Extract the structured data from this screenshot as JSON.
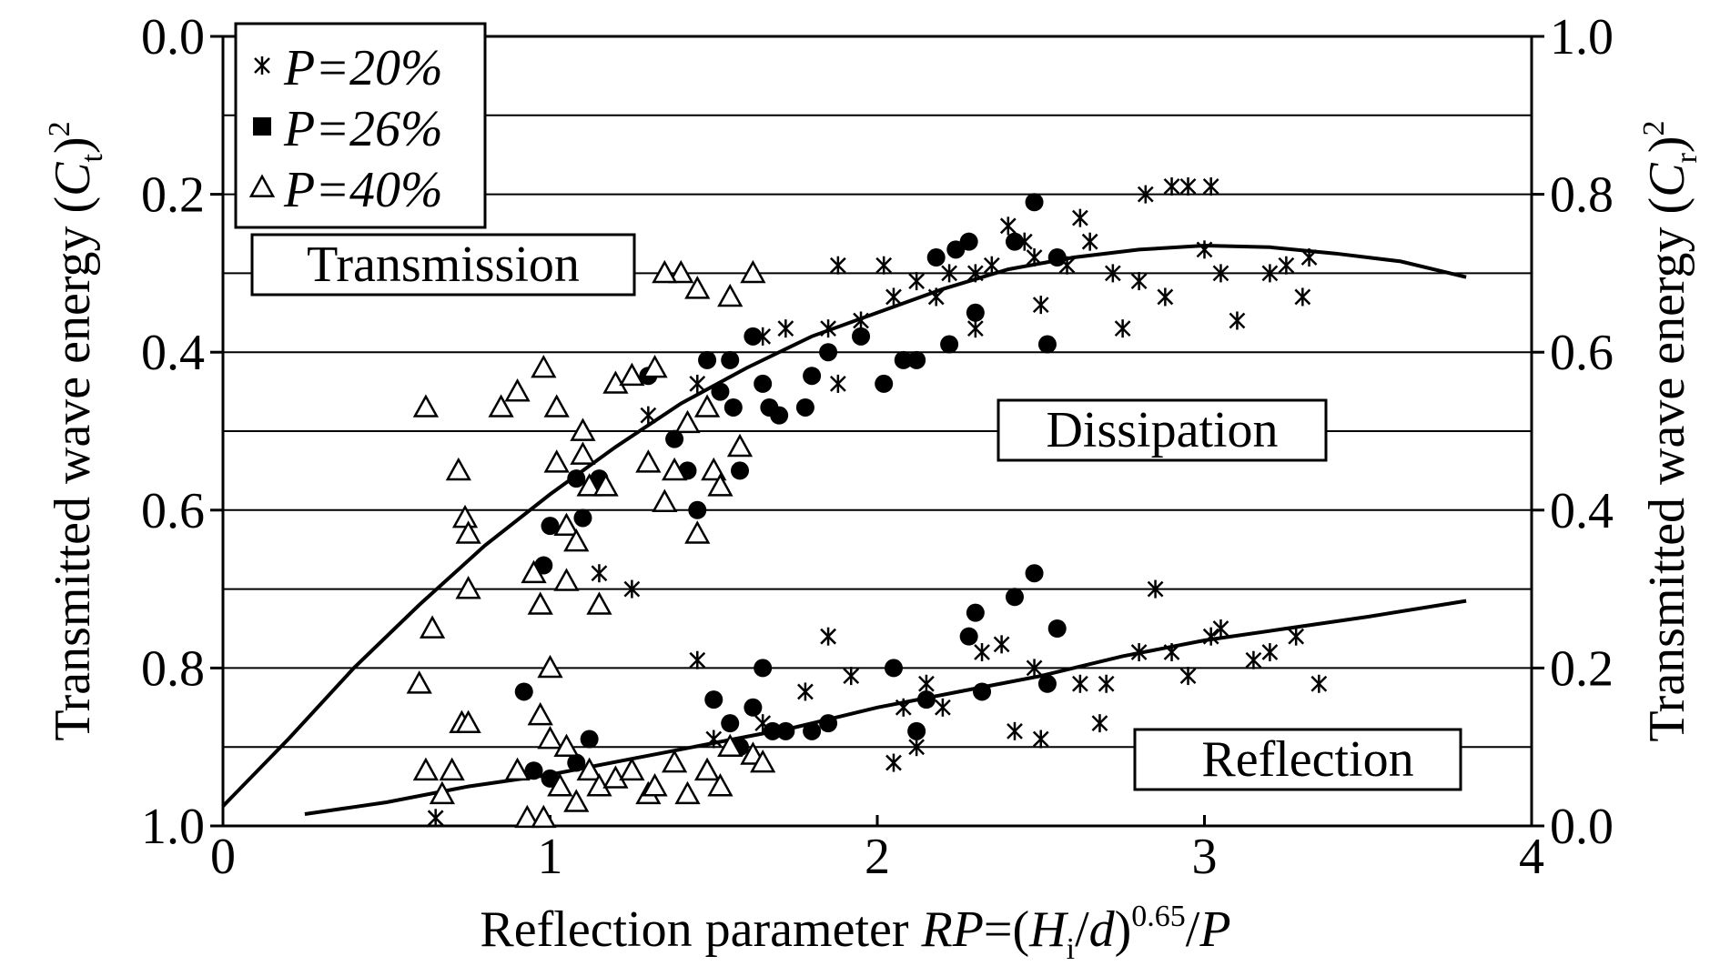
{
  "chart_data": {
    "type": "scatter",
    "title": "",
    "xlabel": "Reflection parameter RP=(Hi/d)^0.65/P",
    "xlabel_parts": {
      "main": "Reflection parameter ",
      "rp": "RP",
      "eq": "=(",
      "h": "H",
      "h_sub": "i",
      "slash": "/",
      "d": "d",
      "close": ")",
      "exp": "0.65",
      "tail": "/",
      "p": "P"
    },
    "ylabel_left": "Transmitted wave energy (Ct)^2",
    "ylabel_left_parts": {
      "main": "Transmitted wave energy (",
      "var": "C",
      "sub": "t",
      "close": ")",
      "sup": "2"
    },
    "ylabel_right": "Transmitted wave energy (Cr)^2",
    "ylabel_right_parts": {
      "main": "Transmitted wave energy (",
      "var": "C",
      "sub": "r",
      "close": ")",
      "sup": "2"
    },
    "xlim": [
      0,
      4
    ],
    "ylim_left": [
      0.0,
      1.0
    ],
    "ylim_left_inverted": true,
    "ylim_right": [
      0.0,
      1.0
    ],
    "x_ticks": [
      "0",
      "1",
      "2",
      "3",
      "4"
    ],
    "y_ticks_left": [
      "0.0",
      "0.2",
      "0.4",
      "0.6",
      "0.8",
      "1.0"
    ],
    "y_ticks_right": [
      "1.0",
      "0.8",
      "0.6",
      "0.4",
      "0.2",
      "0.0"
    ],
    "grid": "horizontal",
    "legend_position": "top-left",
    "legend": [
      {
        "marker": "asterisk",
        "label": "P=20%"
      },
      {
        "marker": "square",
        "label": "P=26%"
      },
      {
        "marker": "triangle",
        "label": "P=40%"
      }
    ],
    "annotations": [
      "Transmission",
      "Dissipation",
      "Reflection"
    ],
    "curves": [
      {
        "name": "transmission",
        "x": [
          0.0,
          0.2,
          0.4,
          0.6,
          0.8,
          1.0,
          1.2,
          1.4,
          1.6,
          1.8,
          2.0,
          2.2,
          2.4,
          2.6,
          2.8,
          3.0,
          3.2,
          3.4,
          3.6,
          3.8
        ],
        "y": [
          0.975,
          0.89,
          0.8,
          0.72,
          0.645,
          0.58,
          0.52,
          0.465,
          0.42,
          0.38,
          0.35,
          0.32,
          0.295,
          0.28,
          0.27,
          0.265,
          0.267,
          0.275,
          0.285,
          0.305
        ]
      },
      {
        "name": "reflection",
        "x": [
          0.25,
          0.5,
          0.75,
          1.0,
          1.25,
          1.5,
          1.75,
          2.0,
          2.25,
          2.5,
          2.75,
          3.0,
          3.25,
          3.5,
          3.8
        ],
        "y": [
          0.985,
          0.97,
          0.95,
          0.935,
          0.915,
          0.895,
          0.875,
          0.85,
          0.83,
          0.81,
          0.785,
          0.765,
          0.75,
          0.735,
          0.715
        ]
      }
    ],
    "series": [
      {
        "name": "P=20%",
        "marker": "asterisk",
        "points": [
          [
            0.65,
            0.99
          ],
          [
            1.3,
            0.48
          ],
          [
            1.45,
            0.44
          ],
          [
            1.65,
            0.38
          ],
          [
            1.72,
            0.37
          ],
          [
            1.85,
            0.37
          ],
          [
            1.88,
            0.44
          ],
          [
            1.95,
            0.36
          ],
          [
            1.88,
            0.29
          ],
          [
            2.02,
            0.29
          ],
          [
            2.05,
            0.33
          ],
          [
            2.12,
            0.31
          ],
          [
            2.18,
            0.33
          ],
          [
            2.22,
            0.3
          ],
          [
            2.3,
            0.3
          ],
          [
            2.3,
            0.37
          ],
          [
            2.35,
            0.29
          ],
          [
            2.4,
            0.24
          ],
          [
            2.45,
            0.26
          ],
          [
            2.48,
            0.28
          ],
          [
            2.5,
            0.34
          ],
          [
            2.58,
            0.29
          ],
          [
            2.62,
            0.23
          ],
          [
            2.65,
            0.26
          ],
          [
            2.72,
            0.3
          ],
          [
            2.75,
            0.37
          ],
          [
            2.8,
            0.31
          ],
          [
            2.82,
            0.2
          ],
          [
            2.88,
            0.33
          ],
          [
            2.9,
            0.19
          ],
          [
            2.95,
            0.19
          ],
          [
            3.0,
            0.27
          ],
          [
            3.02,
            0.19
          ],
          [
            3.05,
            0.3
          ],
          [
            3.1,
            0.36
          ],
          [
            3.2,
            0.3
          ],
          [
            3.25,
            0.29
          ],
          [
            3.3,
            0.33
          ],
          [
            3.32,
            0.28
          ],
          [
            1.15,
            0.68
          ],
          [
            1.25,
            0.7
          ],
          [
            1.45,
            0.79
          ],
          [
            1.78,
            0.83
          ],
          [
            1.85,
            0.76
          ],
          [
            1.92,
            0.81
          ],
          [
            2.05,
            0.92
          ],
          [
            2.08,
            0.85
          ],
          [
            2.12,
            0.9
          ],
          [
            2.15,
            0.82
          ],
          [
            2.2,
            0.85
          ],
          [
            2.32,
            0.78
          ],
          [
            2.38,
            0.77
          ],
          [
            2.42,
            0.88
          ],
          [
            2.48,
            0.8
          ],
          [
            2.5,
            0.89
          ],
          [
            2.62,
            0.82
          ],
          [
            2.68,
            0.87
          ],
          [
            2.7,
            0.82
          ],
          [
            2.8,
            0.78
          ],
          [
            2.85,
            0.7
          ],
          [
            2.9,
            0.78
          ],
          [
            2.95,
            0.81
          ],
          [
            3.02,
            0.76
          ],
          [
            3.05,
            0.75
          ],
          [
            3.15,
            0.79
          ],
          [
            3.2,
            0.78
          ],
          [
            3.28,
            0.76
          ],
          [
            3.35,
            0.82
          ],
          [
            1.5,
            0.89
          ],
          [
            1.65,
            0.87
          ]
        ]
      },
      {
        "name": "P=26%",
        "marker": "filled",
        "points": [
          [
            1.0,
            0.62
          ],
          [
            1.08,
            0.56
          ],
          [
            1.1,
            0.61
          ],
          [
            1.15,
            0.56
          ],
          [
            1.3,
            0.43
          ],
          [
            1.38,
            0.51
          ],
          [
            1.42,
            0.55
          ],
          [
            1.45,
            0.6
          ],
          [
            1.48,
            0.41
          ],
          [
            1.52,
            0.45
          ],
          [
            1.55,
            0.41
          ],
          [
            1.56,
            0.47
          ],
          [
            1.58,
            0.55
          ],
          [
            1.62,
            0.38
          ],
          [
            1.65,
            0.44
          ],
          [
            1.67,
            0.47
          ],
          [
            1.7,
            0.48
          ],
          [
            1.78,
            0.47
          ],
          [
            1.8,
            0.43
          ],
          [
            1.85,
            0.4
          ],
          [
            1.95,
            0.38
          ],
          [
            2.02,
            0.44
          ],
          [
            2.08,
            0.41
          ],
          [
            2.12,
            0.41
          ],
          [
            2.18,
            0.28
          ],
          [
            2.22,
            0.39
          ],
          [
            2.24,
            0.27
          ],
          [
            2.28,
            0.26
          ],
          [
            2.3,
            0.35
          ],
          [
            2.42,
            0.26
          ],
          [
            2.48,
            0.21
          ],
          [
            2.52,
            0.39
          ],
          [
            2.55,
            0.28
          ],
          [
            0.92,
            0.83
          ],
          [
            0.95,
            0.93
          ],
          [
            0.98,
            0.67
          ],
          [
            1.0,
            0.94
          ],
          [
            1.08,
            0.92
          ],
          [
            1.12,
            0.89
          ],
          [
            1.5,
            0.84
          ],
          [
            1.55,
            0.87
          ],
          [
            1.58,
            0.9
          ],
          [
            1.62,
            0.85
          ],
          [
            1.65,
            0.8
          ],
          [
            1.68,
            0.88
          ],
          [
            1.72,
            0.88
          ],
          [
            1.8,
            0.88
          ],
          [
            1.85,
            0.87
          ],
          [
            2.05,
            0.8
          ],
          [
            2.15,
            0.84
          ],
          [
            2.12,
            0.88
          ],
          [
            2.28,
            0.76
          ],
          [
            2.3,
            0.73
          ],
          [
            2.32,
            0.83
          ],
          [
            2.42,
            0.71
          ],
          [
            2.48,
            0.68
          ],
          [
            2.52,
            0.82
          ],
          [
            2.55,
            0.75
          ]
        ]
      },
      {
        "name": "P=40%",
        "marker": "triangle",
        "points": [
          [
            0.62,
            0.47
          ],
          [
            0.72,
            0.55
          ],
          [
            0.74,
            0.61
          ],
          [
            0.75,
            0.63
          ],
          [
            0.75,
            0.7
          ],
          [
            0.85,
            0.47
          ],
          [
            0.9,
            0.45
          ],
          [
            0.95,
            0.68
          ],
          [
            0.97,
            0.72
          ],
          [
            0.98,
            0.42
          ],
          [
            1.0,
            0.8
          ],
          [
            1.02,
            0.54
          ],
          [
            1.02,
            0.47
          ],
          [
            1.05,
            0.62
          ],
          [
            1.05,
            0.69
          ],
          [
            1.08,
            0.64
          ],
          [
            1.1,
            0.5
          ],
          [
            1.1,
            0.53
          ],
          [
            1.12,
            0.57
          ],
          [
            1.17,
            0.57
          ],
          [
            1.2,
            0.44
          ],
          [
            1.25,
            0.43
          ],
          [
            1.3,
            0.54
          ],
          [
            1.32,
            0.42
          ],
          [
            1.35,
            0.59
          ],
          [
            1.38,
            0.55
          ],
          [
            1.4,
            0.3
          ],
          [
            1.42,
            0.49
          ],
          [
            1.45,
            0.32
          ],
          [
            1.48,
            0.47
          ],
          [
            1.5,
            0.55
          ],
          [
            1.52,
            0.57
          ],
          [
            1.55,
            0.33
          ],
          [
            1.58,
            0.52
          ],
          [
            1.62,
            0.3
          ],
          [
            1.35,
            0.3
          ],
          [
            1.45,
            0.63
          ],
          [
            0.6,
            0.82
          ],
          [
            0.62,
            0.93
          ],
          [
            0.64,
            0.75
          ],
          [
            0.67,
            0.96
          ],
          [
            0.7,
            0.93
          ],
          [
            0.73,
            0.87
          ],
          [
            0.75,
            0.87
          ],
          [
            0.9,
            0.93
          ],
          [
            0.93,
            0.99
          ],
          [
            0.97,
            0.86
          ],
          [
            1.0,
            0.89
          ],
          [
            1.03,
            0.95
          ],
          [
            1.05,
            0.9
          ],
          [
            1.08,
            0.97
          ],
          [
            1.12,
            0.93
          ],
          [
            1.15,
            0.95
          ],
          [
            1.2,
            0.94
          ],
          [
            1.25,
            0.93
          ],
          [
            1.3,
            0.96
          ],
          [
            1.32,
            0.95
          ],
          [
            1.38,
            0.92
          ],
          [
            1.42,
            0.96
          ],
          [
            1.48,
            0.93
          ],
          [
            1.52,
            0.95
          ],
          [
            1.55,
            0.9
          ],
          [
            1.62,
            0.91
          ],
          [
            1.65,
            0.92
          ],
          [
            1.15,
            0.72
          ],
          [
            0.98,
            0.99
          ]
        ]
      }
    ]
  }
}
